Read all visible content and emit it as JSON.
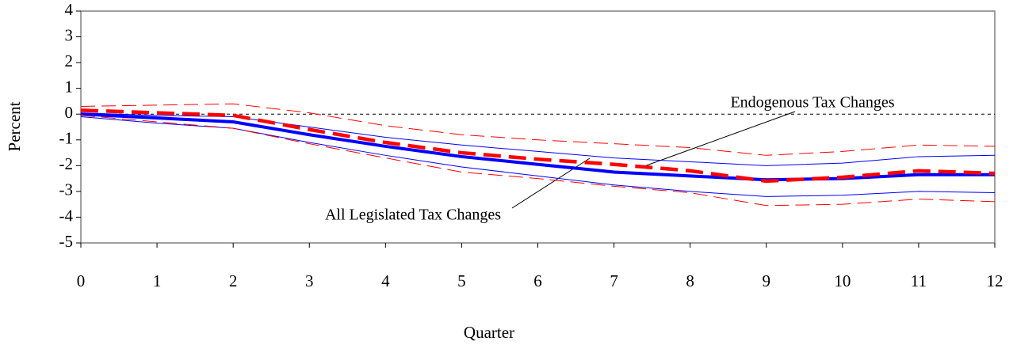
{
  "chart_data": {
    "type": "line",
    "xlabel": "Quarter",
    "ylabel": "Percent",
    "x": [
      0,
      1,
      2,
      3,
      4,
      5,
      6,
      7,
      8,
      9,
      10,
      11,
      12
    ],
    "xlim": [
      0,
      12
    ],
    "xticks": [
      0,
      1,
      2,
      3,
      4,
      5,
      6,
      7,
      8,
      9,
      10,
      11,
      12
    ],
    "ylim": [
      -5,
      4
    ],
    "yticks": [
      -5,
      -4,
      -3,
      -2,
      -1,
      0,
      1,
      2,
      3,
      4
    ],
    "zero_line": true,
    "series": [
      {
        "name": "All Legislated Tax Changes",
        "color": "#0000ff",
        "width": 4,
        "dashed": false,
        "values": [
          0,
          -0.15,
          -0.3,
          -0.8,
          -1.25,
          -1.65,
          -1.95,
          -2.25,
          -2.4,
          -2.55,
          -2.5,
          -2.35,
          -2.35
        ]
      },
      {
        "color": "#0000ff",
        "width": 1,
        "dashed": false,
        "values": [
          0.05,
          -0.05,
          -0.1,
          -0.5,
          -0.9,
          -1.2,
          -1.45,
          -1.7,
          -1.85,
          -2.0,
          -1.9,
          -1.65,
          -1.6
        ]
      },
      {
        "color": "#0000ff",
        "width": 1,
        "dashed": false,
        "values": [
          -0.1,
          -0.35,
          -0.55,
          -1.1,
          -1.6,
          -2.05,
          -2.4,
          -2.75,
          -3.0,
          -3.2,
          -3.15,
          -3.0,
          -3.05
        ]
      },
      {
        "name": "Endogenous Tax Changes",
        "color": "#ff0000",
        "width": 4.5,
        "dashed": true,
        "values": [
          0.15,
          0.05,
          -0.05,
          -0.6,
          -1.1,
          -1.5,
          -1.75,
          -1.95,
          -2.2,
          -2.6,
          -2.45,
          -2.2,
          -2.3
        ]
      },
      {
        "color": "#ff0000",
        "width": 1,
        "dashed": true,
        "values": [
          0.3,
          0.35,
          0.4,
          0.05,
          -0.45,
          -0.8,
          -1.0,
          -1.15,
          -1.3,
          -1.6,
          -1.45,
          -1.2,
          -1.25
        ]
      },
      {
        "color": "#ff0000",
        "width": 1,
        "dashed": true,
        "values": [
          -0.05,
          -0.3,
          -0.55,
          -1.15,
          -1.7,
          -2.25,
          -2.5,
          -2.8,
          -3.05,
          -3.55,
          -3.5,
          -3.3,
          -3.4
        ]
      }
    ]
  }
}
